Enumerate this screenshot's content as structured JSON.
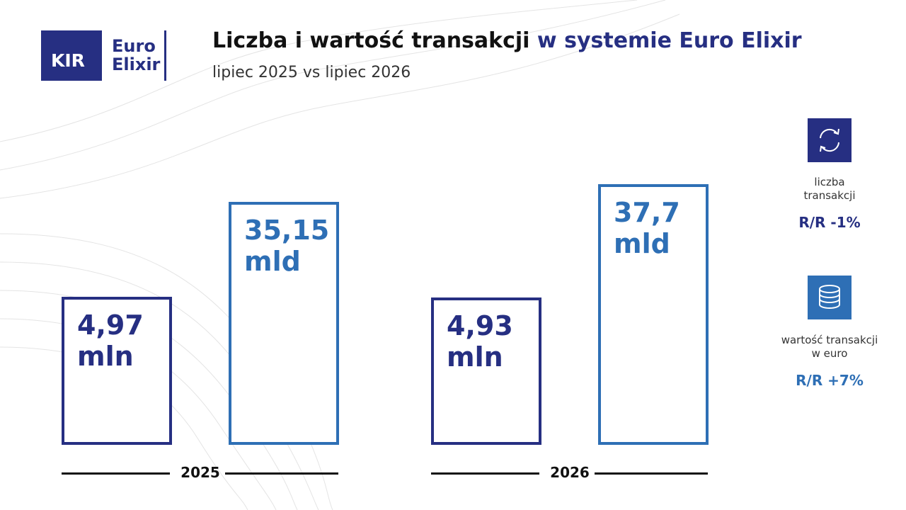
{
  "logo": {
    "mark": "KIR",
    "name_top": "Euro",
    "name_bottom": "Elixir"
  },
  "chart_data": {
    "type": "bar",
    "title": "Liczba i wartość transakcji",
    "title_highlight": "w systemie Euro Elixir",
    "subtitle": "lipiec 2025 vs lipiec 2026",
    "categories": [
      "2025",
      "2026"
    ],
    "series": [
      {
        "name": "liczba transakcji",
        "color": "#262f82",
        "values": [
          4.97,
          4.93
        ],
        "value_labels": [
          "4,97 mln",
          "4,93 mln"
        ],
        "change_label": "R/R -1%"
      },
      {
        "name": "wartość transakcji w euro",
        "color": "#2e6fb5",
        "axis": "y2",
        "values": [
          35.15,
          37.7
        ],
        "value_labels": [
          "35,15 mld",
          "37,7 mld"
        ],
        "change_label": "R/R +7%"
      }
    ],
    "ylim": [
      0,
      9.5
    ],
    "y2lim": [
      0,
      41
    ],
    "grid": false,
    "legend": "right"
  }
}
